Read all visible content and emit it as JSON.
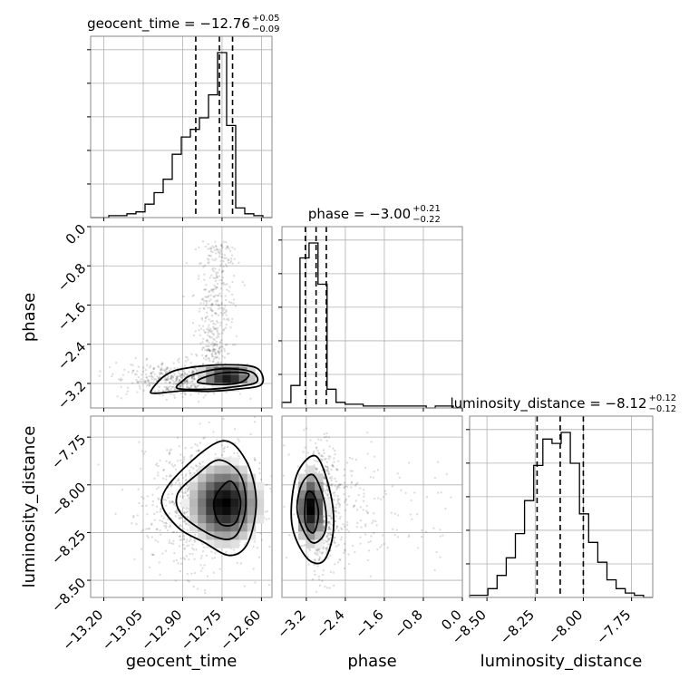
{
  "chart_data": {
    "type": "corner",
    "parameters": [
      "geocent_time",
      "phase",
      "luminosity_distance"
    ],
    "axis_labels": [
      "geocent_time",
      "phase",
      "luminosity_distance"
    ],
    "titles": [
      {
        "text": "geocent_time = −12.76",
        "sup": "+0.05",
        "sub": "−0.09"
      },
      {
        "text": "phase = −3.00",
        "sup": "+0.21",
        "sub": "−0.22"
      },
      {
        "text": "luminosity_distance = −8.12",
        "sup": "+0.12",
        "sub": "−0.12"
      }
    ],
    "ranges": {
      "geocent_time": [
        -13.25,
        -12.56
      ],
      "phase": [
        -3.7,
        0.0
      ],
      "luminosity_distance": [
        -8.59,
        -7.64
      ]
    },
    "ticks": {
      "geocent_time": {
        "values": [
          -13.2,
          -13.05,
          -12.9,
          -12.75,
          -12.6
        ],
        "labels": [
          "−13.20",
          "−13.05",
          "−12.90",
          "−12.75",
          "−12.60"
        ]
      },
      "phase": {
        "values": [
          -3.2,
          -2.4,
          -1.6,
          -0.8,
          0.0
        ],
        "labels": [
          "−3.2",
          "−2.4",
          "−1.6",
          "−0.8",
          "0.0"
        ]
      },
      "luminosity_distance": {
        "values": [
          -8.5,
          -8.25,
          -8.0,
          -7.75
        ],
        "labels": [
          "−8.50",
          "−8.25",
          "−8.00",
          "−7.75"
        ]
      }
    },
    "quantiles": {
      "geocent_time": [
        -12.85,
        -12.76,
        -12.71
      ],
      "phase": [
        -3.22,
        -3.0,
        -2.79
      ],
      "luminosity_distance": [
        -8.24,
        -8.12,
        -8.0
      ]
    },
    "histograms": {
      "geocent_time": {
        "edges": [
          -13.25,
          -13.2155,
          -13.181,
          -13.1465,
          -13.112,
          -13.0775,
          -13.043,
          -13.0085,
          -12.974,
          -12.9395,
          -12.905,
          -12.8705,
          -12.836,
          -12.8015,
          -12.767,
          -12.7325,
          -12.698,
          -12.6635,
          -12.629,
          -12.5945,
          -12.56
        ],
        "counts": [
          0,
          0,
          1,
          1,
          2,
          3,
          7,
          13,
          20,
          33,
          42,
          46,
          52,
          64,
          86,
          48,
          5,
          2,
          1,
          0
        ]
      },
      "phase": {
        "edges": [
          -3.7,
          -3.515,
          -3.33,
          -3.145,
          -2.96,
          -2.775,
          -2.59,
          -2.405,
          -2.22,
          -2.035,
          -1.85,
          -1.665,
          -1.48,
          -1.295,
          -1.11,
          -0.925,
          -0.74,
          -0.555,
          -0.37,
          -0.185,
          0.0
        ],
        "counts": [
          3,
          12,
          80,
          88,
          66,
          10,
          3,
          2,
          2,
          1,
          1,
          1,
          1,
          1,
          1,
          1,
          0,
          1,
          1,
          0
        ]
      },
      "luminosity_distance": {
        "edges": [
          -8.59,
          -8.5425,
          -8.495,
          -8.4475,
          -8.4,
          -8.3525,
          -8.305,
          -8.2575,
          -8.21,
          -8.1625,
          -8.115,
          -8.0675,
          -8.02,
          -7.9725,
          -7.925,
          -7.8775,
          -7.83,
          -7.7825,
          -7.735,
          -7.6875,
          -7.64
        ],
        "counts": [
          1,
          1,
          4,
          10,
          18,
          29,
          44,
          60,
          72,
          70,
          75,
          61,
          38,
          25,
          16,
          8,
          4,
          2,
          1,
          0
        ]
      }
    },
    "contours_2d": [
      {
        "x": "geocent_time",
        "y": "phase",
        "levels": [
          [
            [
              -13.0,
              -3.4
            ],
            [
              -12.9,
              -3.35
            ],
            [
              -12.8,
              -3.36
            ],
            [
              -12.7,
              -3.32
            ],
            [
              -12.6,
              -3.22
            ],
            [
              -12.62,
              -2.88
            ],
            [
              -12.75,
              -2.82
            ],
            [
              -12.9,
              -2.9
            ],
            [
              -12.97,
              -3.05
            ],
            [
              -13.02,
              -3.35
            ]
          ],
          [
            [
              -12.92,
              -3.3
            ],
            [
              -12.82,
              -3.32
            ],
            [
              -12.72,
              -3.28
            ],
            [
              -12.62,
              -3.18
            ],
            [
              -12.64,
              -2.96
            ],
            [
              -12.75,
              -2.9
            ],
            [
              -12.86,
              -3.02
            ],
            [
              -12.9,
              -3.15
            ]
          ],
          [
            [
              -12.84,
              -3.18
            ],
            [
              -12.76,
              -3.22
            ],
            [
              -12.68,
              -3.18
            ],
            [
              -12.65,
              -3.0
            ],
            [
              -12.74,
              -2.98
            ],
            [
              -12.82,
              -3.08
            ]
          ]
        ]
      },
      {
        "x": "geocent_time",
        "y": "luminosity_distance",
        "levels": [
          [
            [
              -12.75,
              -7.77
            ],
            [
              -12.66,
              -7.87
            ],
            [
              -12.62,
              -8.08
            ],
            [
              -12.65,
              -8.3
            ],
            [
              -12.72,
              -8.37
            ],
            [
              -12.82,
              -8.3
            ],
            [
              -12.92,
              -8.22
            ],
            [
              -12.98,
              -8.08
            ],
            [
              -12.9,
              -7.92
            ]
          ],
          [
            [
              -12.76,
              -7.87
            ],
            [
              -12.68,
              -7.95
            ],
            [
              -12.66,
              -8.12
            ],
            [
              -12.7,
              -8.27
            ],
            [
              -12.78,
              -8.27
            ],
            [
              -12.9,
              -8.16
            ],
            [
              -12.92,
              -8.05
            ],
            [
              -12.84,
              -7.94
            ]
          ],
          [
            [
              -12.72,
              -7.98
            ],
            [
              -12.68,
              -8.08
            ],
            [
              -12.7,
              -8.2
            ],
            [
              -12.76,
              -8.2
            ],
            [
              -12.78,
              -8.08
            ]
          ]
        ]
      },
      {
        "x": "phase",
        "y": "luminosity_distance",
        "levels": [
          [
            [
              -3.4,
              -7.95
            ],
            [
              -3.0,
              -7.85
            ],
            [
              -2.7,
              -8.05
            ],
            [
              -2.65,
              -8.25
            ],
            [
              -2.85,
              -8.4
            ],
            [
              -3.2,
              -8.38
            ],
            [
              -3.5,
              -8.2
            ]
          ],
          [
            [
              -3.3,
              -8.0
            ],
            [
              -3.05,
              -7.95
            ],
            [
              -2.82,
              -8.1
            ],
            [
              -2.82,
              -8.25
            ],
            [
              -3.1,
              -8.3
            ],
            [
              -3.38,
              -8.15
            ]
          ],
          [
            [
              -3.2,
              -8.05
            ],
            [
              -3.05,
              -8.05
            ],
            [
              -2.95,
              -8.15
            ],
            [
              -3.05,
              -8.25
            ],
            [
              -3.22,
              -8.2
            ]
          ]
        ]
      }
    ],
    "density_peaks": [
      {
        "x": "geocent_time",
        "y": "phase",
        "center": [
          -12.73,
          -3.05
        ],
        "spread": [
          0.07,
          0.15
        ]
      },
      {
        "x": "geocent_time",
        "y": "luminosity_distance",
        "center": [
          -12.74,
          -8.1
        ],
        "spread": [
          0.09,
          0.14
        ]
      },
      {
        "x": "phase",
        "y": "luminosity_distance",
        "center": [
          -3.1,
          -8.12
        ],
        "spread": [
          0.2,
          0.13
        ]
      }
    ],
    "grid": true
  }
}
